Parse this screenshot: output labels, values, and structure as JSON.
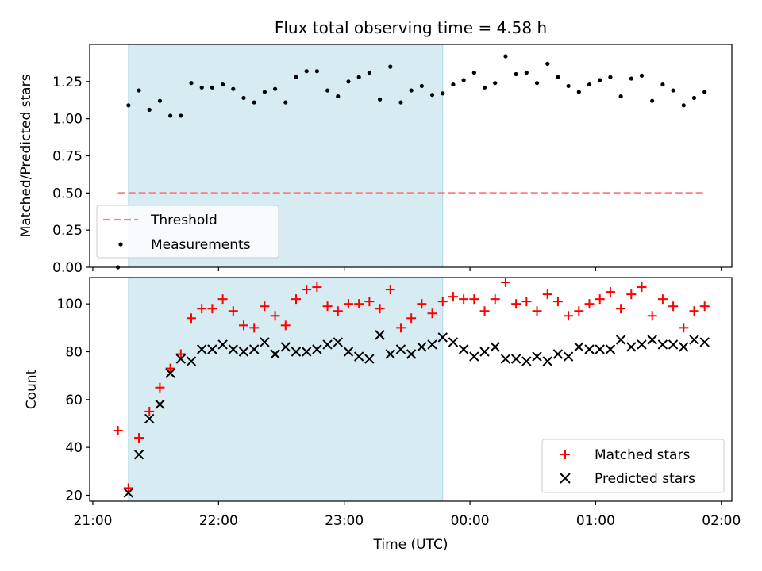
{
  "chart_data": [
    {
      "type": "scatter",
      "title": "Flux total observing time = 4.58 h",
      "ylabel": "Matched/Predicted stars",
      "xlabel": "",
      "ylim": [
        0,
        1.5
      ],
      "yticks": [
        "0.00",
        "0.25",
        "0.50",
        "0.75",
        "1.00",
        "1.25"
      ],
      "shaded_interval": [
        "21:17",
        "23:47"
      ],
      "threshold": 0.5,
      "legend": {
        "placement": "lower-left",
        "entries": [
          "Threshold",
          "Measurements"
        ]
      },
      "series": [
        {
          "name": "Measurements",
          "x": [
            "21:12",
            "21:17",
            "21:22",
            "21:27",
            "21:32",
            "21:37",
            "21:42",
            "21:47",
            "21:52",
            "21:57",
            "22:02",
            "22:07",
            "22:12",
            "22:17",
            "22:22",
            "22:27",
            "22:32",
            "22:37",
            "22:42",
            "22:47",
            "22:52",
            "22:57",
            "23:02",
            "23:07",
            "23:12",
            "23:17",
            "23:22",
            "23:27",
            "23:32",
            "23:37",
            "23:42",
            "23:47",
            "23:52",
            "23:57",
            "00:02",
            "00:07",
            "00:12",
            "00:17",
            "00:22",
            "00:27",
            "00:32",
            "00:37",
            "00:42",
            "00:47",
            "00:52",
            "00:57",
            "01:02",
            "01:07",
            "01:12",
            "01:17",
            "01:22",
            "01:27",
            "01:32",
            "01:37",
            "01:42",
            "01:47",
            "01:52"
          ],
          "values": [
            0.0,
            1.09,
            1.19,
            1.06,
            1.12,
            1.02,
            1.02,
            1.24,
            1.21,
            1.21,
            1.23,
            1.2,
            1.14,
            1.11,
            1.18,
            1.2,
            1.11,
            1.28,
            1.32,
            1.32,
            1.19,
            1.15,
            1.25,
            1.28,
            1.31,
            1.13,
            1.35,
            1.11,
            1.19,
            1.22,
            1.16,
            1.17,
            1.23,
            1.26,
            1.31,
            1.21,
            1.24,
            1.42,
            1.3,
            1.31,
            1.24,
            1.37,
            1.28,
            1.22,
            1.18,
            1.23,
            1.26,
            1.28,
            1.15,
            1.27,
            1.29,
            1.12,
            1.23,
            1.19,
            1.09,
            1.14,
            1.18
          ]
        }
      ]
    },
    {
      "type": "scatter",
      "title": "",
      "ylabel": "Count",
      "xlabel": "Time (UTC)",
      "ylim": [
        17.5,
        111
      ],
      "yticks": [
        "20",
        "40",
        "60",
        "80",
        "100"
      ],
      "xticks": [
        "21:00",
        "22:00",
        "23:00",
        "00:00",
        "01:00",
        "02:00"
      ],
      "shaded_interval": [
        "21:17",
        "23:47"
      ],
      "legend": {
        "placement": "lower-right",
        "entries": [
          "Matched stars",
          "Predicted stars"
        ]
      },
      "series": [
        {
          "name": "Matched stars",
          "color": "#ff0000",
          "values": [
            47,
            23,
            44,
            55,
            65,
            73,
            79,
            94,
            98,
            98,
            102,
            97,
            91,
            90,
            99,
            95,
            91,
            102,
            106,
            107,
            99,
            97,
            100,
            100,
            101,
            98,
            106,
            90,
            94,
            100,
            96,
            101,
            103,
            102,
            102,
            97,
            102,
            109,
            100,
            101,
            97,
            104,
            101,
            95,
            97,
            100,
            102,
            105,
            98,
            104,
            107,
            95,
            102,
            99,
            90,
            97,
            99
          ]
        },
        {
          "name": "Predicted stars",
          "color": "#000000",
          "values": [
            null,
            21,
            37,
            52,
            58,
            71,
            77,
            76,
            81,
            81,
            83,
            81,
            80,
            81,
            84,
            79,
            82,
            80,
            80,
            81,
            83,
            84,
            80,
            78,
            77,
            87,
            79,
            81,
            79,
            82,
            83,
            86,
            84,
            81,
            78,
            80,
            82,
            77,
            77,
            76,
            78,
            76,
            79,
            78,
            82,
            81,
            81,
            81,
            85,
            82,
            83,
            85,
            83,
            83,
            82,
            85,
            84
          ]
        }
      ]
    }
  ],
  "colors": {
    "shade": "#add8e6",
    "threshold": "#ff7f7f",
    "matched": "#ff0000",
    "predicted": "#000000"
  }
}
